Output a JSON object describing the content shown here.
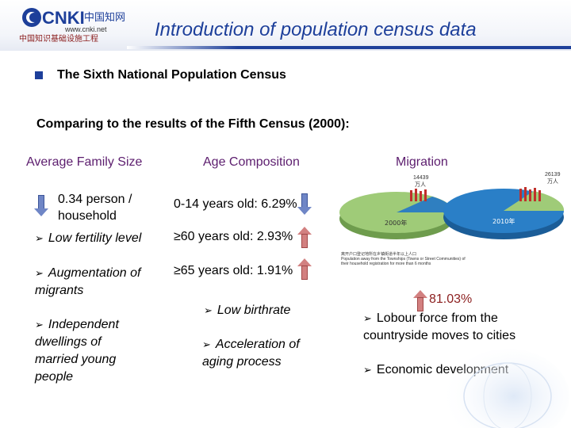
{
  "header": {
    "title": "Introduction of population census data",
    "logo": {
      "brand": "CNKI",
      "url": "www.cnki.net",
      "chinese_name": "中国知网",
      "chinese_subtitle": "中国知识基础设施工程"
    }
  },
  "census": {
    "heading": "The Sixth National Population Census",
    "comparison": "Comparing to the results of the Fifth Census (2000):"
  },
  "columns": {
    "family": {
      "header": "Average Family Size",
      "change": "0.34 person / household",
      "bullets": [
        "Low fertility level",
        "Augmentation of migrants",
        "Independent dwellings of married young people"
      ]
    },
    "age": {
      "header": "Age Composition",
      "items": [
        "0-14 years old: 6.29%",
        "≥60 years old: 2.93%",
        "≥65 years old: 1.91%"
      ],
      "bullets": [
        "Low birthrate",
        "Acceleration of aging process"
      ]
    },
    "migration": {
      "header": "Migration",
      "change": "81.03%",
      "bullets": [
        "Lobour force from the countryside moves to cities",
        "Economic development"
      ],
      "pie_labels": {
        "year_2000": "2000年",
        "year_2010": "2010年",
        "value_2000": "14439",
        "value_2010": "26139",
        "unit": "万人"
      },
      "caption_cn": "离开户口登记地所在乡镇街道半年以上人口",
      "caption_en": "Population away from the Townships (Towns or Street Communities) of their household registration for more than 6 months"
    }
  },
  "colors": {
    "title_blue": "#1d3f9a",
    "header_purple": "#5c1d6e",
    "down_arrow": "#6f86c6",
    "up_arrow": "#d28080",
    "pie_green": "#8fbf69",
    "pie_blue": "#1f6fb3",
    "people_red": "#c0302b"
  },
  "icons": [
    "cnki-logo",
    "bullet-square",
    "down-arrow-icon",
    "up-arrow-icon",
    "chevron-bullet-icon",
    "pie-chart-image",
    "globe-image"
  ]
}
